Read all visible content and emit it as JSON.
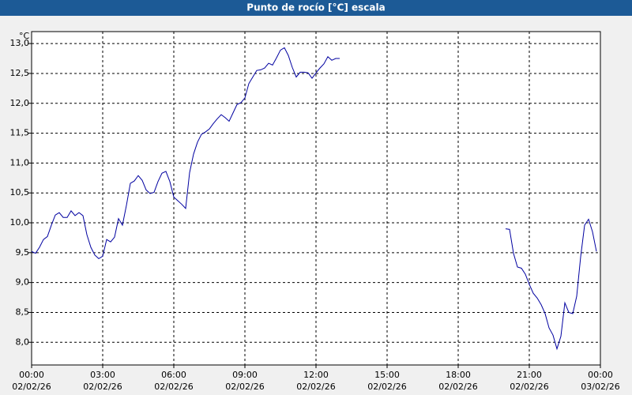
{
  "chart_data": {
    "type": "line",
    "title": "Punto de rocío [°C] escala",
    "y_unit": "°C",
    "x": [
      0,
      10,
      20,
      30,
      40,
      50,
      60,
      70,
      80,
      90,
      100,
      110,
      120,
      130,
      140,
      150,
      160,
      170,
      180,
      190,
      200,
      210,
      220,
      230,
      240,
      250,
      260,
      270,
      280,
      290,
      300,
      310,
      320,
      330,
      340,
      350,
      360,
      370,
      380,
      390,
      400,
      410,
      420,
      430,
      440,
      450,
      460,
      470,
      480,
      490,
      500,
      510,
      520,
      530,
      540,
      550,
      560,
      570,
      580,
      590,
      600,
      610,
      620,
      630,
      640,
      650,
      660,
      670,
      680,
      690,
      700,
      710,
      720,
      730,
      740,
      750,
      760,
      770,
      780,
      1000,
      1200,
      1210,
      1220,
      1230,
      1240,
      1250,
      1260,
      1270,
      1280,
      1290,
      1300,
      1310,
      1320,
      1330,
      1340,
      1350,
      1360,
      1370,
      1380,
      1390,
      1400,
      1410,
      1420,
      1430
    ],
    "series": [
      {
        "name": "Punto de rocío",
        "color": "#0000a0",
        "values": [
          9.52,
          9.49,
          9.59,
          9.72,
          9.77,
          9.96,
          10.13,
          10.17,
          10.09,
          10.09,
          10.2,
          10.12,
          10.17,
          10.12,
          9.8,
          9.59,
          9.46,
          9.4,
          9.44,
          9.72,
          9.68,
          9.76,
          10.07,
          9.96,
          10.29,
          10.66,
          10.7,
          10.79,
          10.71,
          10.55,
          10.49,
          10.51,
          10.69,
          10.83,
          10.86,
          10.69,
          10.43,
          10.37,
          10.31,
          10.24,
          10.84,
          11.15,
          11.35,
          11.48,
          11.52,
          11.57,
          11.66,
          11.74,
          11.81,
          11.76,
          11.7,
          11.84,
          11.98,
          12.01,
          12.09,
          12.33,
          12.44,
          12.55,
          12.56,
          12.59,
          12.67,
          12.64,
          12.76,
          12.89,
          12.93,
          12.8,
          12.6,
          12.44,
          12.52,
          12.52,
          12.51,
          12.42,
          12.51,
          12.59,
          12.66,
          12.78,
          12.72,
          12.75,
          12.75,
          null,
          9.9,
          9.89,
          9.49,
          9.26,
          9.24,
          9.14,
          8.97,
          8.82,
          8.74,
          8.63,
          8.48,
          8.24,
          8.12,
          7.89,
          8.1,
          8.66,
          8.5,
          8.48,
          8.77,
          9.43,
          9.96,
          10.06,
          9.85,
          9.52
        ]
      }
    ],
    "xlim": [
      0,
      1440
    ],
    "xticks": [
      {
        "value": 0,
        "label": "00:00"
      },
      {
        "value": 180,
        "label": "03:00"
      },
      {
        "value": 360,
        "label": "06:00"
      },
      {
        "value": 540,
        "label": "09:00"
      },
      {
        "value": 720,
        "label": "12:00"
      },
      {
        "value": 900,
        "label": "15:00"
      },
      {
        "value": 1080,
        "label": "18:00"
      },
      {
        "value": 1260,
        "label": "21:00"
      },
      {
        "value": 1440,
        "label": "00:00"
      }
    ],
    "xtick_dates": [
      "02/02/26",
      "02/02/26",
      "02/02/26",
      "02/02/26",
      "02/02/26",
      "02/02/26",
      "02/02/26",
      "02/02/26",
      "03/02/26"
    ],
    "ylim": [
      7.62,
      13.2
    ],
    "yticks": [
      {
        "value": 8,
        "label": "8,0"
      },
      {
        "value": 8.5,
        "label": "8,5"
      },
      {
        "value": 9,
        "label": "9,0"
      },
      {
        "value": 9.5,
        "label": "9,5"
      },
      {
        "value": 10,
        "label": "10,0"
      },
      {
        "value": 10.5,
        "label": "10,5"
      },
      {
        "value": 11,
        "label": "11,0"
      },
      {
        "value": 11.5,
        "label": "11,5"
      },
      {
        "value": 12,
        "label": "12,0"
      },
      {
        "value": 12.5,
        "label": "12,5"
      },
      {
        "value": 13,
        "label": "13,0"
      }
    ],
    "grid": true
  }
}
